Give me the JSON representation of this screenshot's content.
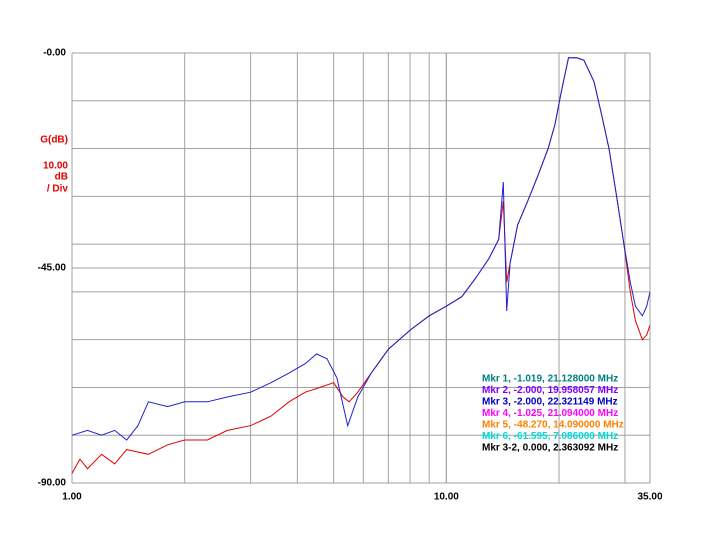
{
  "chart_data": {
    "type": "line",
    "y_label": [
      "G(dB)",
      "10.00",
      "dB",
      "/ Div"
    ],
    "y_label_color": "#e00000",
    "log_x": true,
    "xlim": [
      1,
      35
    ],
    "ylim": [
      -90,
      0
    ],
    "xticks": [
      {
        "value": 1,
        "label": "1.00"
      },
      {
        "value": 10,
        "label": "10.00"
      },
      {
        "value": 35,
        "label": "35.00"
      }
    ],
    "yticks": [
      {
        "value": 0,
        "label": "-0.00"
      },
      {
        "value": -45,
        "label": "-45.00"
      },
      {
        "value": -90,
        "label": "-90.00"
      }
    ],
    "x_grid": [
      2,
      3,
      4,
      5,
      6,
      7,
      8,
      9,
      10,
      20,
      30
    ],
    "y_grid": [
      -10,
      -20,
      -30,
      -40,
      -50,
      -60,
      -70,
      -80
    ],
    "grid": true,
    "series": [
      {
        "color": "#e00000",
        "x": [
          1.0,
          1.05,
          1.1,
          1.2,
          1.3,
          1.4,
          1.6,
          1.8,
          2.0,
          2.3,
          2.6,
          3.0,
          3.4,
          3.8,
          4.2,
          4.6,
          5.0,
          5.3,
          5.5,
          5.8,
          6.3,
          7.0,
          8.0,
          9.0,
          10,
          11,
          12,
          13,
          13.8,
          14.2,
          14.5,
          14.8,
          15.5,
          16.5,
          17.5,
          18.7,
          19.5,
          20.3,
          21.2,
          22.3,
          23.3,
          24.8,
          26,
          27.2,
          28.5,
          29.8,
          31,
          32,
          33.4,
          34.3,
          35
        ],
        "values": [
          -88,
          -85,
          -87,
          -84,
          -86,
          -83,
          -84,
          -82,
          -81,
          -81,
          -79,
          -78,
          -76,
          -73,
          -71,
          -70,
          -69,
          -72,
          -73,
          -71,
          -67,
          -62,
          -58,
          -55,
          -53,
          -51,
          -47,
          -43,
          -39,
          -31,
          -48,
          -44,
          -36,
          -31,
          -26,
          -20,
          -15,
          -8,
          -1,
          -1,
          -1.5,
          -6,
          -13,
          -20,
          -30,
          -40,
          -50,
          -56,
          -60,
          -59,
          -57
        ]
      },
      {
        "color": "#2020d0",
        "x": [
          1.0,
          1.1,
          1.2,
          1.3,
          1.4,
          1.5,
          1.6,
          1.8,
          2.0,
          2.3,
          2.6,
          3.0,
          3.4,
          3.8,
          4.2,
          4.5,
          4.8,
          5.1,
          5.45,
          5.8,
          6.3,
          7.0,
          8.0,
          9.0,
          10,
          11,
          12,
          13,
          13.8,
          14.2,
          14.5,
          14.8,
          15.5,
          16.5,
          17.5,
          18.7,
          19.5,
          20.3,
          21.2,
          22.3,
          23.3,
          24.8,
          26,
          27.2,
          28.5,
          29.8,
          31,
          32,
          33.4,
          34.3,
          35
        ],
        "values": [
          -80,
          -79,
          -80,
          -79,
          -81,
          -78,
          -73,
          -74,
          -73,
          -73,
          -72,
          -71,
          -69,
          -67,
          -65,
          -63,
          -64,
          -68,
          -78,
          -72,
          -67,
          -62,
          -58,
          -55,
          -53,
          -51,
          -47,
          -43,
          -39,
          -27,
          -54,
          -44,
          -36,
          -31,
          -26,
          -20,
          -15,
          -8,
          -1,
          -1,
          -1.5,
          -6,
          -13,
          -20,
          -30,
          -40,
          -48,
          -53,
          -55,
          -53,
          -50
        ]
      }
    ],
    "markers": [
      {
        "text": "Mkr 1, -1.019, 21.128000 MHz",
        "color": "#008080"
      },
      {
        "text": "Mkr 2, -2.000, 19.958057 MHz",
        "color": "#8000ff"
      },
      {
        "text": "Mkr 3, -2.000, 22.321149 MHz",
        "color": "#0000c0"
      },
      {
        "text": "Mkr 4, -1.025, 21.094000 MHz",
        "color": "#ff00ff"
      },
      {
        "text": "Mkr 5, -48.270, 14.090000 MHz",
        "color": "#ff8000"
      },
      {
        "text": "Mkr 6, -61.595, 7.086000 MHz",
        "color": "#00d8d8"
      },
      {
        "text": "Mkr 3-2, 0.000, 2.363092 MHz",
        "color": "#000000"
      }
    ]
  }
}
